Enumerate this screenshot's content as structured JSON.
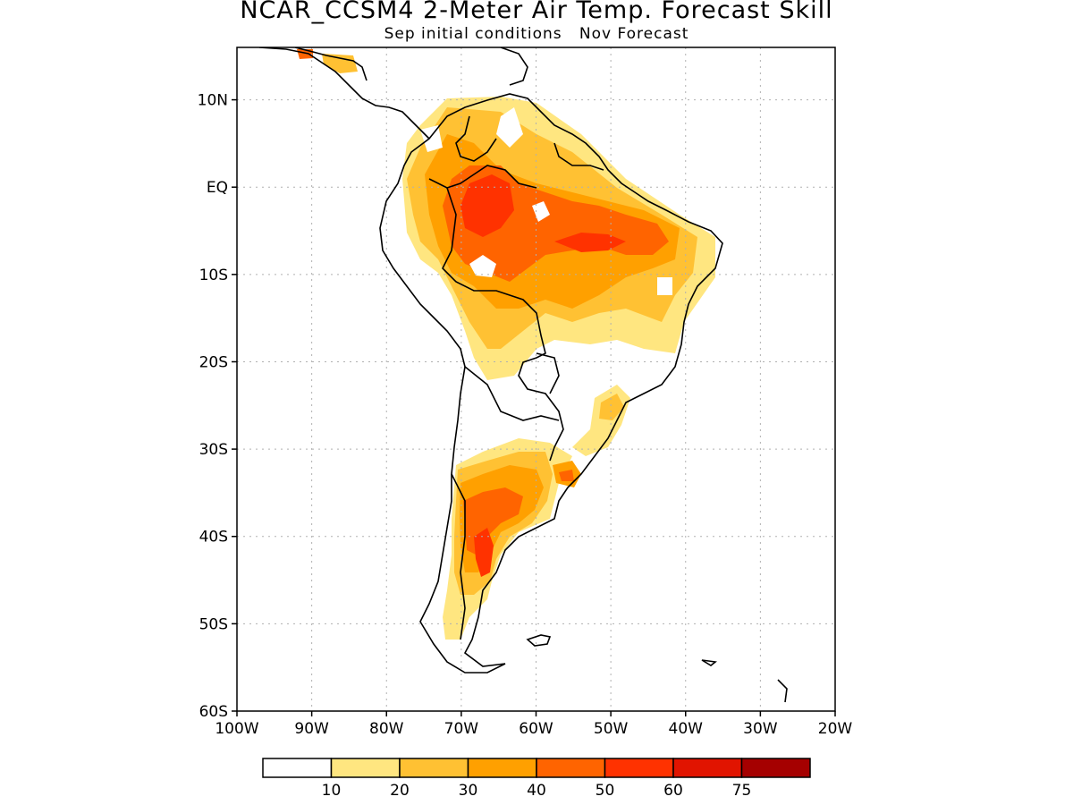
{
  "title": "NCAR_CCSM4 2-Meter Air Temp. Forecast Skill",
  "subtitle": "Sep initial conditions   Nov Forecast",
  "map": {
    "region": "South America",
    "lon_range": [
      -100,
      -20
    ],
    "lat_range": [
      -60,
      16
    ],
    "grid": "dotted",
    "lat_labels": [
      {
        "value": 10,
        "text": "10N"
      },
      {
        "value": 0,
        "text": "EQ"
      },
      {
        "value": -10,
        "text": "10S"
      },
      {
        "value": -20,
        "text": "20S"
      },
      {
        "value": -30,
        "text": "30S"
      },
      {
        "value": -40,
        "text": "40S"
      },
      {
        "value": -50,
        "text": "50S"
      },
      {
        "value": -60,
        "text": "60S"
      }
    ],
    "lon_labels": [
      {
        "value": -100,
        "text": "100W"
      },
      {
        "value": -90,
        "text": "90W"
      },
      {
        "value": -80,
        "text": "80W"
      },
      {
        "value": -70,
        "text": "70W"
      },
      {
        "value": -60,
        "text": "60W"
      },
      {
        "value": -50,
        "text": "50W"
      },
      {
        "value": -40,
        "text": "40W"
      },
      {
        "value": -30,
        "text": "30W"
      },
      {
        "value": -20,
        "text": "20W"
      }
    ]
  },
  "colorbar": {
    "labels": [
      "10",
      "20",
      "30",
      "40",
      "50",
      "60",
      "75"
    ],
    "colors": [
      "#ffffff",
      "#ffe680",
      "#ffc133",
      "#ffa000",
      "#ff6400",
      "#ff3200",
      "#e11400",
      "#a50000"
    ]
  }
}
